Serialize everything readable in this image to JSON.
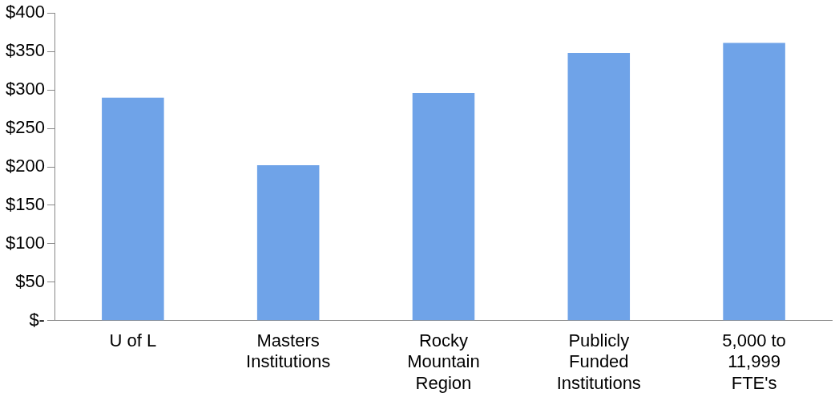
{
  "chart_data": {
    "type": "bar",
    "categories": [
      "U of L",
      "Masters Institutions",
      "Rocky Mountain Region",
      "Publicly Funded Institutions",
      "5,000 to 11,999 FTE's"
    ],
    "values": [
      290,
      202,
      296,
      348,
      361
    ],
    "color": "#6fa3e8",
    "ylim": [
      0,
      400
    ],
    "yticks": [
      {
        "value": 0,
        "label": "$-"
      },
      {
        "value": 50,
        "label": "$50"
      },
      {
        "value": 100,
        "label": "$100"
      },
      {
        "value": 150,
        "label": "$150"
      },
      {
        "value": 200,
        "label": "$200"
      },
      {
        "value": 250,
        "label": "$250"
      },
      {
        "value": 300,
        "label": "$300"
      },
      {
        "value": 350,
        "label": "$350"
      },
      {
        "value": 400,
        "label": "$400"
      }
    ],
    "grid": false,
    "legend": false
  }
}
